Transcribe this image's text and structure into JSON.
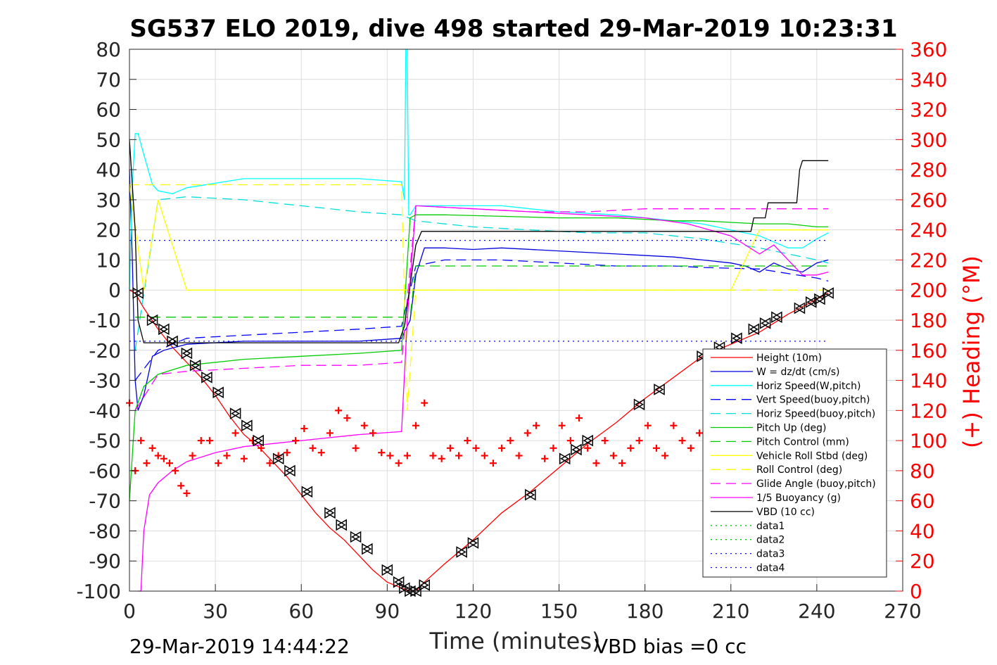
{
  "chart_data": {
    "type": "line",
    "title": "SG537 ELO 2019, dive 498 started 29-Mar-2019 10:23:31",
    "xlabel": "Time (minutes)",
    "ylabel_right": "(+) Heading (°M)",
    "xlim": [
      0,
      270
    ],
    "ylim_left": [
      -100,
      80
    ],
    "ylim_right": [
      0,
      360
    ],
    "xticks": [
      "0",
      "30",
      "60",
      "90",
      "120",
      "150",
      "180",
      "210",
      "240",
      "270"
    ],
    "yticks_left": [
      "80",
      "70",
      "60",
      "50",
      "40",
      "30",
      "20",
      "10",
      "0",
      "-10",
      "-20",
      "-30",
      "-40",
      "-50",
      "-60",
      "-70",
      "-80",
      "-90",
      "-100"
    ],
    "yticks_right": [
      "360",
      "340",
      "320",
      "300",
      "280",
      "260",
      "240",
      "220",
      "200",
      "180",
      "160",
      "140",
      "120",
      "100",
      "80",
      "60",
      "40",
      "20",
      "0"
    ],
    "grid": true,
    "legend_position": "bottom-right",
    "footer_left": "29-Mar-2019 14:44:22",
    "footer_right": "VBD bias =0 cc",
    "series": [
      {
        "name": "Height (10m)",
        "color": "#ff0000",
        "style": "solid",
        "x": [
          0,
          2,
          5,
          10,
          15,
          20,
          25,
          30,
          35,
          40,
          45,
          50,
          55,
          60,
          65,
          70,
          75,
          80,
          85,
          90,
          95,
          98,
          100,
          103,
          110,
          120,
          130,
          140,
          150,
          160,
          170,
          180,
          190,
          200,
          210,
          220,
          230,
          240,
          244
        ],
        "y": [
          0,
          -1,
          -6,
          -13,
          -19,
          -24,
          -29,
          -35,
          -42,
          -48,
          -52,
          -57,
          -62,
          -68,
          -74,
          -79,
          -83,
          -88,
          -93,
          -97,
          -99,
          -100,
          -100,
          -97,
          -91,
          -83,
          -74,
          -67,
          -59,
          -51,
          -44,
          -36,
          -29,
          -22,
          -18,
          -14,
          -8,
          -3,
          -1
        ]
      },
      {
        "name": "W = dz/dt (cm/s)",
        "color": "#0000dd",
        "style": "solid",
        "x": [
          0,
          1,
          2,
          3,
          5,
          8,
          12,
          20,
          40,
          60,
          80,
          95,
          97,
          98,
          100,
          103,
          110,
          120,
          130,
          150,
          170,
          190,
          200,
          210,
          215,
          220,
          225,
          230,
          235,
          240,
          244
        ],
        "y": [
          40,
          10,
          -30,
          -40,
          -35,
          -22,
          -20,
          -18,
          -17,
          -17,
          -17,
          -16,
          -12,
          -10,
          5,
          14,
          14,
          13.5,
          14,
          13,
          12,
          11,
          10,
          9,
          8,
          6,
          9,
          7,
          6,
          9,
          10
        ]
      },
      {
        "name": "Horiz Speed(W,pitch)",
        "color": "#00ffff",
        "style": "solid",
        "x": [
          0,
          1,
          2,
          3,
          5,
          8,
          10,
          15,
          20,
          40,
          60,
          80,
          95,
          96,
          96.5,
          97,
          97.5,
          98,
          100,
          103,
          120,
          130,
          150,
          170,
          190,
          200,
          210,
          220,
          225,
          230,
          235,
          240,
          244
        ],
        "y": [
          0,
          35,
          52,
          52,
          45,
          35,
          33,
          32,
          34,
          37,
          37,
          37,
          36,
          30,
          80,
          80,
          25,
          25,
          28,
          28,
          28,
          28,
          26,
          25,
          23,
          22,
          20,
          18,
          16,
          14,
          14,
          17,
          19
        ]
      },
      {
        "name": "Vert Speed(buoy,pitch)",
        "color": "#0000ff",
        "style": "dash",
        "x": [
          2,
          10,
          20,
          40,
          60,
          80,
          95,
          100,
          110,
          130,
          150,
          170,
          190,
          200,
          220,
          240,
          244
        ],
        "y": [
          -30,
          -20,
          -16,
          -15,
          -14,
          -13,
          -12,
          8,
          10,
          10,
          9,
          8,
          8,
          7.5,
          7,
          4,
          3
        ]
      },
      {
        "name": "Horiz Speed(buoy,pitch)",
        "color": "#00dddd",
        "style": "dash",
        "x": [
          2,
          10,
          20,
          40,
          60,
          80,
          95,
          100,
          120,
          140,
          160,
          180,
          200,
          220,
          240,
          244
        ],
        "y": [
          -20,
          30,
          31,
          30,
          28,
          26,
          25,
          23,
          21,
          20,
          19,
          19,
          17,
          14,
          10,
          9
        ]
      },
      {
        "name": "Pitch Up (deg)",
        "color": "#00cc00",
        "style": "solid",
        "x": [
          0,
          2,
          5,
          10,
          20,
          40,
          60,
          80,
          95,
          98,
          100,
          110,
          130,
          150,
          170,
          190,
          200,
          210,
          220,
          230,
          240,
          244
        ],
        "y": [
          -70,
          -40,
          -32,
          -28,
          -25,
          -23,
          -22,
          -21,
          -20,
          24,
          25,
          25,
          24.5,
          24,
          24,
          23,
          23,
          22.5,
          22,
          22,
          21,
          21
        ]
      },
      {
        "name": "Pitch Control (mm)",
        "color": "#00cc00",
        "style": "dash",
        "x": [
          2,
          10,
          40,
          60,
          95,
          98,
          100,
          240,
          244
        ],
        "y": [
          -9,
          -9,
          -9,
          -9,
          -9,
          -9,
          8,
          8,
          8
        ]
      },
      {
        "name": "Vehicle Roll Stbd (deg)",
        "color": "#ffff00",
        "style": "solid",
        "x": [
          0,
          5,
          10,
          20,
          40,
          60,
          80,
          95,
          97,
          100,
          120,
          150,
          180,
          200,
          210,
          220,
          230,
          240,
          244
        ],
        "y": [
          35,
          0,
          30,
          0,
          0,
          0,
          0,
          0,
          0,
          0,
          0,
          0,
          0,
          0,
          0,
          20,
          20,
          20,
          20
        ]
      },
      {
        "name": "Roll Control (deg)",
        "color": "#ffff00",
        "style": "dash",
        "x": [
          0,
          5,
          20,
          60,
          95,
          97,
          100,
          120,
          160,
          200,
          240,
          244
        ],
        "y": [
          35,
          35,
          35,
          35,
          35,
          -40,
          0,
          0,
          0,
          0,
          0,
          0
        ]
      },
      {
        "name": "Glide Angle (buoy,pitch)",
        "color": "#ff00ff",
        "style": "dash",
        "x": [
          2,
          10,
          20,
          40,
          60,
          80,
          95,
          100,
          120,
          140,
          160,
          180,
          200,
          220,
          240,
          244
        ],
        "y": [
          -40,
          -28,
          -27,
          -26,
          -25,
          -25,
          -24,
          28,
          27,
          26,
          26,
          27,
          27,
          27,
          27,
          27
        ]
      },
      {
        "name": "1/5 Buoyancy (g)",
        "color": "#ff00ff",
        "style": "solid",
        "x": [
          3,
          4,
          5,
          7,
          10,
          15,
          20,
          30,
          40,
          60,
          80,
          95,
          97,
          100,
          120,
          140,
          160,
          180,
          195,
          210,
          220,
          225,
          230,
          235,
          240,
          244
        ],
        "y": [
          -100,
          -100,
          -80,
          -68,
          -64,
          -60,
          -57,
          -54,
          -52,
          -50,
          -48,
          -47,
          -10,
          28,
          27,
          26,
          25,
          24,
          22,
          18,
          12,
          15,
          10,
          5,
          5,
          6
        ]
      },
      {
        "name": "VBD (10 cc)",
        "color": "#000000",
        "style": "solid",
        "x": [
          0,
          2,
          3,
          5,
          93,
          94,
          96,
          97,
          100,
          102,
          200,
          205,
          215,
          217,
          218,
          222,
          223,
          233,
          234,
          235,
          244
        ],
        "y": [
          50,
          20,
          -10,
          -17.5,
          -17.5,
          -17.5,
          -12,
          -5,
          15,
          19.5,
          19.5,
          19.5,
          19.5,
          19.5,
          24,
          24,
          29,
          29,
          40,
          43,
          43
        ]
      },
      {
        "name": "data1",
        "color": "#00cc00",
        "style": "dot",
        "x": [
          0,
          244
        ],
        "y": [
          null,
          null
        ]
      },
      {
        "name": "data2",
        "color": "#00cc00",
        "style": "dot",
        "x": [
          0,
          244
        ],
        "y": [
          null,
          null
        ]
      },
      {
        "name": "data3",
        "color": "#0000ff",
        "style": "dot",
        "x": [
          0,
          244
        ],
        "y": [
          16.5,
          16.5
        ]
      },
      {
        "name": "data4",
        "color": "#0000ff",
        "style": "dot",
        "x": [
          0,
          244
        ],
        "y": [
          -17,
          -17
        ]
      }
    ],
    "heading": {
      "name": "(+) Heading (°M)",
      "color": "#ff0000",
      "marker": "+",
      "axis": "right",
      "x": [
        0,
        2,
        4,
        6,
        8,
        10,
        12,
        14,
        16,
        18,
        20,
        22,
        25,
        28,
        31,
        34,
        37,
        40,
        43,
        46,
        49,
        52,
        55,
        58,
        61,
        64,
        67,
        70,
        73,
        76,
        79,
        82,
        85,
        88,
        91,
        94,
        97,
        100,
        103,
        106,
        109,
        112,
        115,
        118,
        121,
        124,
        127,
        130,
        133,
        136,
        139,
        142,
        145,
        148,
        151,
        154,
        157,
        160,
        163,
        166,
        169,
        172,
        175,
        178,
        181,
        184,
        187,
        190,
        193,
        196,
        199,
        202,
        205,
        208,
        211,
        214,
        217,
        220,
        223,
        226,
        229,
        232,
        235,
        238,
        241,
        244
      ],
      "y": [
        125,
        80,
        100,
        85,
        95,
        90,
        88,
        85,
        80,
        70,
        65,
        90,
        100,
        100,
        85,
        90,
        105,
        88,
        100,
        95,
        85,
        90,
        92,
        100,
        108,
        95,
        92,
        105,
        120,
        115,
        95,
        110,
        105,
        92,
        90,
        85,
        90,
        110,
        125,
        90,
        88,
        95,
        90,
        100,
        95,
        90,
        85,
        95,
        100,
        90,
        105,
        110,
        88,
        95,
        110,
        100,
        115,
        95,
        85,
        100,
        90,
        85,
        95,
        100,
        110,
        95,
        90,
        110,
        100,
        95,
        105,
        120,
        115,
        110,
        100,
        95,
        88,
        100,
        115,
        108,
        100,
        95,
        90,
        100,
        95,
        100
      ]
    },
    "markers": {
      "name": "height markers",
      "color": "#000000",
      "marker": "triangles",
      "x": [
        3,
        8,
        12,
        15,
        20,
        23,
        27,
        31,
        37,
        41,
        45,
        52,
        56,
        62,
        70,
        74,
        79,
        83,
        90,
        94,
        96,
        98,
        100,
        103,
        116,
        120,
        140,
        152,
        156,
        160,
        178,
        185,
        200,
        206,
        212,
        218,
        222,
        226,
        234,
        238,
        241,
        244
      ],
      "y": [
        -1,
        -10,
        -13,
        -17,
        -21,
        -25,
        -29,
        -34,
        -41,
        -45,
        -50,
        -56,
        -60,
        -67,
        -74,
        -78,
        -82,
        -86,
        -93,
        -97,
        -99,
        -100,
        -100,
        -98,
        -87,
        -84,
        -68,
        -56,
        -53,
        -50,
        -38,
        -33,
        -22,
        -19,
        -16,
        -13,
        -11,
        -9,
        -6,
        -4,
        -3,
        -1
      ]
    }
  }
}
